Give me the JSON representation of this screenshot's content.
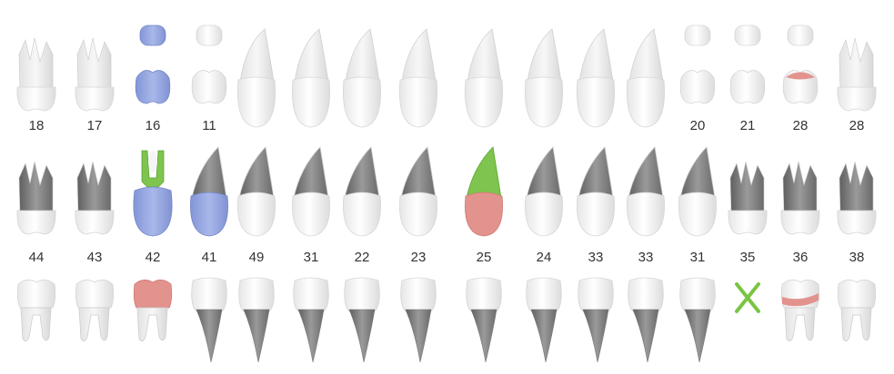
{
  "colors": {
    "crown": "#f4f4f4",
    "crown_edge": "#d6d6d6",
    "root_light": "#eeeeee",
    "root_dark": "#8a8a8a",
    "root_shade": "#cfcfcf",
    "blue": "#98a9e2",
    "green": "#7ec44f",
    "red": "#e3938e",
    "missing": "#79c542"
  },
  "rows": {
    "top": {
      "labels": [
        "18",
        "17",
        "16",
        "11",
        "",
        "",
        "",
        "",
        "",
        "",
        "",
        "",
        "20",
        "21",
        "28",
        "28"
      ],
      "teeth": [
        {
          "type": "molar-up",
          "state": "normal"
        },
        {
          "type": "molar-up",
          "state": "normal"
        },
        {
          "type": "occlusal-pair",
          "state": "blue"
        },
        {
          "type": "occlusal-pair",
          "state": "normal"
        },
        {
          "type": "canine-up",
          "state": "normal"
        },
        {
          "type": "canine-up",
          "state": "normal"
        },
        {
          "type": "canine-up",
          "state": "normal"
        },
        {
          "type": "canine-up",
          "state": "normal"
        },
        {
          "type": "canine-up",
          "state": "normal"
        },
        {
          "type": "canine-up",
          "state": "normal"
        },
        {
          "type": "canine-up",
          "state": "normal"
        },
        {
          "type": "canine-up",
          "state": "normal"
        },
        {
          "type": "occlusal-pair",
          "state": "normal"
        },
        {
          "type": "occlusal-pair",
          "state": "normal"
        },
        {
          "type": "occlusal-pair",
          "state": "red-top"
        },
        {
          "type": "molar-up",
          "state": "normal"
        }
      ]
    },
    "middle": {
      "labels": [
        "44",
        "43",
        "42",
        "41",
        "49",
        "31",
        "22",
        "23",
        "25",
        "24",
        "33",
        "33",
        "31",
        "35",
        "36",
        "38"
      ],
      "teeth": [
        {
          "type": "molar-up-dark",
          "state": "normal"
        },
        {
          "type": "molar-up-dark",
          "state": "normal"
        },
        {
          "type": "canal",
          "state": "blue-green"
        },
        {
          "type": "canine-dark",
          "state": "blue"
        },
        {
          "type": "canine-dark",
          "state": "normal"
        },
        {
          "type": "canine-dark",
          "state": "normal"
        },
        {
          "type": "canine-dark",
          "state": "normal"
        },
        {
          "type": "canine-dark",
          "state": "normal"
        },
        {
          "type": "canine-dark",
          "state": "red-green"
        },
        {
          "type": "canine-dark",
          "state": "normal"
        },
        {
          "type": "canine-dark",
          "state": "normal"
        },
        {
          "type": "canine-dark",
          "state": "normal"
        },
        {
          "type": "canine-dark",
          "state": "normal"
        },
        {
          "type": "molar-up-dark",
          "state": "normal"
        },
        {
          "type": "molar-up-dark",
          "state": "normal"
        },
        {
          "type": "molar-up-dark",
          "state": "normal"
        }
      ]
    },
    "bottom": {
      "labels": [
        "",
        "",
        "",
        "",
        "",
        "",
        "",
        "",
        "",
        "",
        "",
        "",
        "",
        "",
        "",
        ""
      ],
      "teeth": [
        {
          "type": "molar-down",
          "state": "normal"
        },
        {
          "type": "molar-down",
          "state": "normal"
        },
        {
          "type": "molar-down",
          "state": "red-crown"
        },
        {
          "type": "incisor-down",
          "state": "normal"
        },
        {
          "type": "incisor-down",
          "state": "normal"
        },
        {
          "type": "incisor-down",
          "state": "normal"
        },
        {
          "type": "incisor-down",
          "state": "normal"
        },
        {
          "type": "incisor-down",
          "state": "normal"
        },
        {
          "type": "incisor-down",
          "state": "normal"
        },
        {
          "type": "incisor-down",
          "state": "normal"
        },
        {
          "type": "incisor-down",
          "state": "normal"
        },
        {
          "type": "incisor-down",
          "state": "normal"
        },
        {
          "type": "incisor-down",
          "state": "normal"
        },
        {
          "type": "missing",
          "state": "missing"
        },
        {
          "type": "molar-down",
          "state": "red-band"
        },
        {
          "type": "molar-down",
          "state": "normal"
        }
      ]
    }
  }
}
